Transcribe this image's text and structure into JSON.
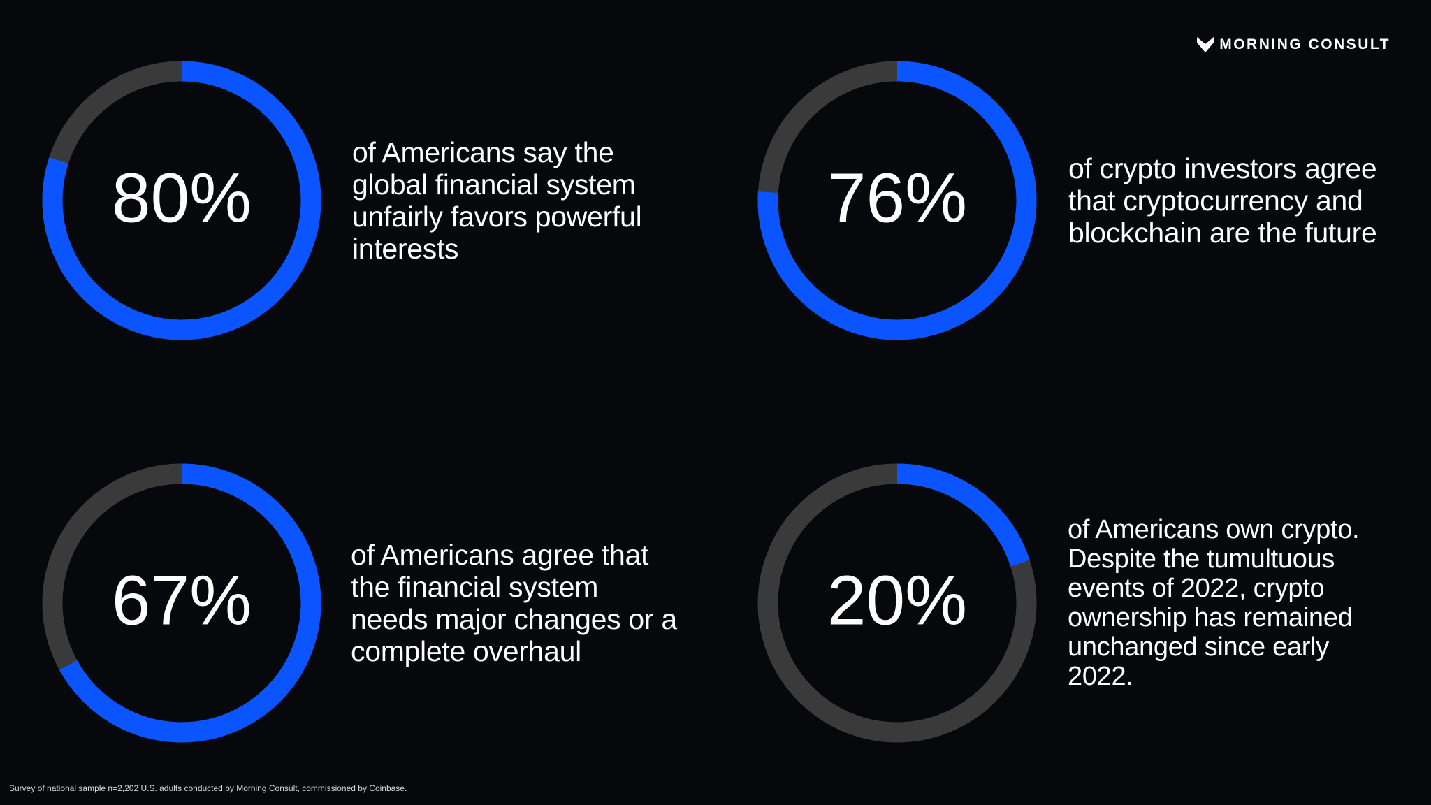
{
  "brand": "MORNING CONSULT",
  "footnote": "Survey of national sample n=2,202 U.S. adults conducted by Morning Consult, commissioned by Coinbase.",
  "chart_data": [
    {
      "type": "donut",
      "values": [
        80
      ],
      "value_labels": [
        "80%"
      ],
      "ylim": [
        0,
        100
      ],
      "color": "#0a55ff",
      "track_color": "#3a3a3a",
      "annotation": "of Americans say the global financial system unfairly favors powerful interests"
    },
    {
      "type": "donut",
      "values": [
        76
      ],
      "value_labels": [
        "76%"
      ],
      "ylim": [
        0,
        100
      ],
      "color": "#0a55ff",
      "track_color": "#3a3a3a",
      "annotation": "of crypto investors agree that cryptocurrency and blockchain are the future"
    },
    {
      "type": "donut",
      "values": [
        67
      ],
      "value_labels": [
        "67%"
      ],
      "ylim": [
        0,
        100
      ],
      "color": "#0a55ff",
      "track_color": "#3a3a3a",
      "annotation": "of Americans agree that the financial system needs major changes or a complete overhaul"
    },
    {
      "type": "donut",
      "values": [
        20
      ],
      "value_labels": [
        "20%"
      ],
      "ylim": [
        0,
        100
      ],
      "color": "#0a55ff",
      "track_color": "#3a3a3a",
      "annotation": "of Americans own crypto. Despite the tumultuous events of 2022, crypto ownership has remained unchanged since early 2022."
    }
  ]
}
